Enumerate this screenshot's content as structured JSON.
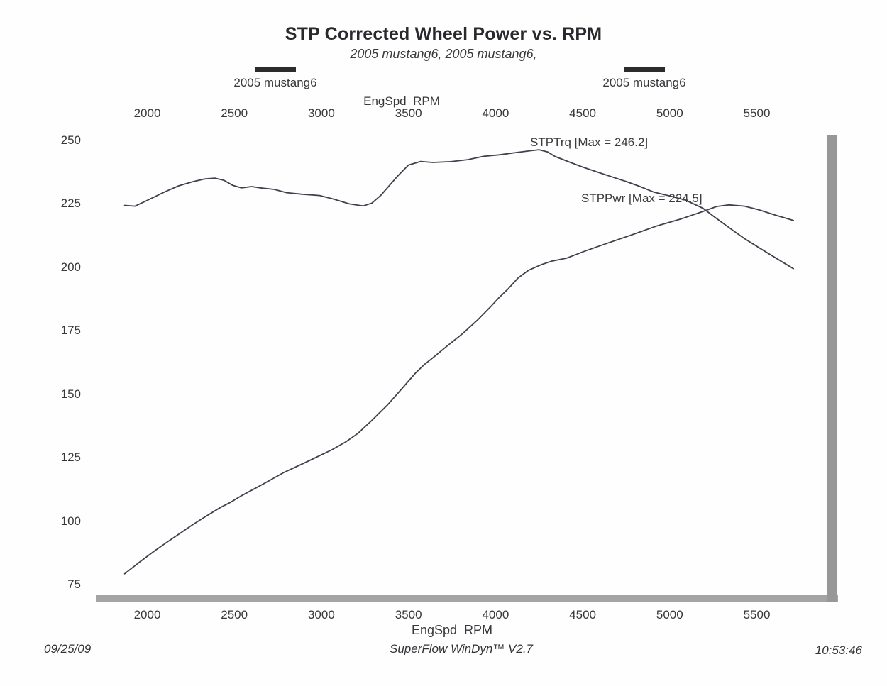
{
  "header": {
    "title": "STP Corrected Wheel Power vs. RPM",
    "subtitle": "2005 mustang6, 2005 mustang6,"
  },
  "legend": {
    "items": [
      {
        "label": "2005 mustang6"
      },
      {
        "label": "2005 mustang6"
      }
    ]
  },
  "axes": {
    "top": {
      "label": "EngSpd  RPM"
    },
    "bottom": {
      "label": "EngSpd  RPM"
    },
    "left": {
      "label": ""
    }
  },
  "footer": {
    "date": "09/25/09",
    "app": "SuperFlow WinDyn™ V2.7",
    "time": "10:53:46"
  },
  "chart_data": {
    "type": "line",
    "title": "STP Corrected Wheel Power vs. RPM",
    "subtitle": "2005 mustang6, 2005 mustang6,",
    "xlabel": "EngSpd RPM",
    "ylabel": "",
    "xlim": [
      1850,
      5870
    ],
    "ylim": [
      68,
      253
    ],
    "grid": false,
    "legend_position": "top",
    "x_ticks": [
      2000,
      2500,
      3000,
      3500,
      4000,
      4500,
      5000,
      5500
    ],
    "y_ticks": [
      250,
      225,
      200,
      175,
      150,
      125,
      100,
      75
    ],
    "line_color": "#41414d",
    "series": [
      {
        "name": "STPTrq",
        "max": 246.2,
        "points": [
          [
            1870,
            224.3
          ],
          [
            1930,
            224.0
          ],
          [
            2000,
            226.3
          ],
          [
            2100,
            229.6
          ],
          [
            2180,
            232.0
          ],
          [
            2260,
            233.6
          ],
          [
            2330,
            234.7
          ],
          [
            2390,
            235.0
          ],
          [
            2440,
            234.2
          ],
          [
            2490,
            232.2
          ],
          [
            2540,
            231.2
          ],
          [
            2600,
            231.7
          ],
          [
            2660,
            231.1
          ],
          [
            2730,
            230.6
          ],
          [
            2800,
            229.3
          ],
          [
            2890,
            228.7
          ],
          [
            2990,
            228.2
          ],
          [
            3070,
            226.8
          ],
          [
            3160,
            224.9
          ],
          [
            3240,
            224.1
          ],
          [
            3290,
            225.2
          ],
          [
            3340,
            228.2
          ],
          [
            3440,
            236.0
          ],
          [
            3500,
            240.2
          ],
          [
            3570,
            241.6
          ],
          [
            3640,
            241.2
          ],
          [
            3740,
            241.5
          ],
          [
            3840,
            242.3
          ],
          [
            3930,
            243.6
          ],
          [
            4020,
            244.2
          ],
          [
            4120,
            245.1
          ],
          [
            4200,
            245.8
          ],
          [
            4250,
            246.2
          ],
          [
            4300,
            245.3
          ],
          [
            4340,
            243.6
          ],
          [
            4430,
            241.2
          ],
          [
            4500,
            239.4
          ],
          [
            4590,
            237.3
          ],
          [
            4660,
            235.7
          ],
          [
            4750,
            233.7
          ],
          [
            4830,
            231.7
          ],
          [
            4910,
            229.5
          ],
          [
            4990,
            228.2
          ],
          [
            5090,
            226.4
          ],
          [
            5190,
            223.2
          ],
          [
            5260,
            219.6
          ],
          [
            5360,
            214.6
          ],
          [
            5430,
            211.2
          ],
          [
            5530,
            206.9
          ],
          [
            5640,
            202.3
          ],
          [
            5710,
            199.4
          ]
        ]
      },
      {
        "name": "STPPwr",
        "max": 224.5,
        "points": [
          [
            1870,
            79.3
          ],
          [
            1950,
            83.6
          ],
          [
            2040,
            88.2
          ],
          [
            2110,
            91.6
          ],
          [
            2190,
            95.3
          ],
          [
            2260,
            98.6
          ],
          [
            2320,
            101.2
          ],
          [
            2420,
            105.4
          ],
          [
            2480,
            107.5
          ],
          [
            2540,
            110.0
          ],
          [
            2660,
            114.4
          ],
          [
            2780,
            119.0
          ],
          [
            2920,
            123.5
          ],
          [
            3060,
            128.1
          ],
          [
            3140,
            131.2
          ],
          [
            3210,
            134.6
          ],
          [
            3290,
            139.7
          ],
          [
            3380,
            145.8
          ],
          [
            3460,
            152.0
          ],
          [
            3540,
            158.3
          ],
          [
            3590,
            161.6
          ],
          [
            3650,
            164.9
          ],
          [
            3710,
            168.3
          ],
          [
            3810,
            173.8
          ],
          [
            3900,
            179.4
          ],
          [
            3970,
            184.3
          ],
          [
            4020,
            188.0
          ],
          [
            4070,
            191.3
          ],
          [
            4130,
            195.8
          ],
          [
            4190,
            198.8
          ],
          [
            4260,
            200.9
          ],
          [
            4320,
            202.3
          ],
          [
            4410,
            203.6
          ],
          [
            4520,
            206.5
          ],
          [
            4650,
            209.6
          ],
          [
            4790,
            212.9
          ],
          [
            4930,
            216.3
          ],
          [
            5070,
            219.1
          ],
          [
            5190,
            221.9
          ],
          [
            5270,
            223.9
          ],
          [
            5340,
            224.5
          ],
          [
            5430,
            224.0
          ],
          [
            5510,
            222.6
          ],
          [
            5610,
            220.4
          ],
          [
            5710,
            218.4
          ]
        ]
      }
    ],
    "annotations": [
      {
        "text": "STPTrq [Max = 246.2]"
      },
      {
        "text": "STPPwr [Max = 224.5]"
      }
    ]
  }
}
